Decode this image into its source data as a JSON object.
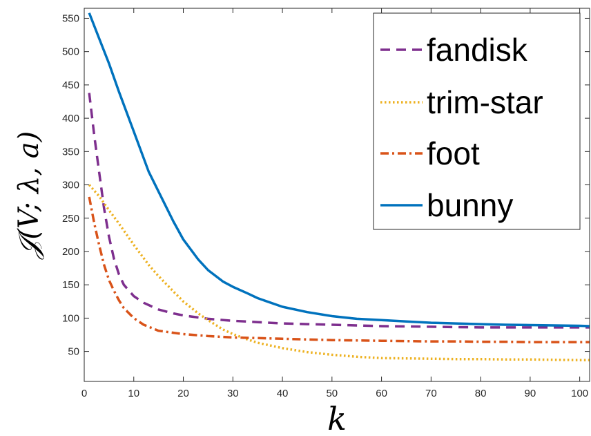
{
  "chart_data": {
    "type": "line",
    "xlabel": "k",
    "ylabel": "𝒥(V; λ, a)",
    "xlim": [
      0,
      102
    ],
    "ylim": [
      5,
      565
    ],
    "xticks": [
      "0",
      "10",
      "20",
      "30",
      "40",
      "50",
      "60",
      "70",
      "80",
      "90",
      "100"
    ],
    "yticks": [
      "50",
      "100",
      "150",
      "200",
      "250",
      "300",
      "350",
      "400",
      "450",
      "500",
      "550"
    ],
    "grid": false,
    "legend_position": "top-right",
    "series": [
      {
        "name": "fandisk",
        "color": "#7E2F8E",
        "style": "dashed",
        "x": [
          1,
          2,
          3,
          4,
          5,
          6,
          7,
          8,
          10,
          12,
          15,
          18,
          20,
          25,
          30,
          35,
          40,
          45,
          50,
          55,
          60,
          65,
          70,
          75,
          80,
          85,
          90,
          95,
          100,
          102
        ],
        "y": [
          438,
          375,
          320,
          265,
          222,
          189,
          166,
          150,
          133,
          123,
          113,
          107,
          104,
          99,
          96,
          94,
          92,
          91,
          90,
          89,
          88,
          87.5,
          87,
          86.5,
          86,
          86,
          86,
          86,
          86,
          86
        ]
      },
      {
        "name": "trim-star",
        "color": "#EDB120",
        "style": "dotted",
        "x": [
          1,
          3,
          5,
          7,
          10,
          13,
          15,
          18,
          20,
          23,
          25,
          28,
          30,
          33,
          35,
          40,
          45,
          50,
          55,
          60,
          65,
          70,
          75,
          80,
          85,
          90,
          95,
          100,
          102
        ],
        "y": [
          300,
          283,
          262,
          242,
          210,
          180,
          163,
          140,
          125,
          107,
          97,
          83,
          76,
          68,
          63,
          55,
          49,
          45,
          42,
          40,
          39.5,
          39,
          38.5,
          38.5,
          38,
          38,
          37.5,
          37,
          37
        ]
      },
      {
        "name": "foot",
        "color": "#D95319",
        "style": "dashdot",
        "x": [
          1,
          2,
          3,
          4,
          5,
          6,
          7,
          8,
          10,
          12,
          15,
          18,
          20,
          25,
          30,
          35,
          40,
          45,
          50,
          55,
          60,
          65,
          70,
          75,
          80,
          85,
          90,
          95,
          100,
          102
        ],
        "y": [
          282,
          243,
          210,
          180,
          157,
          141,
          127,
          115,
          100,
          90,
          81,
          78,
          76,
          73,
          71,
          70,
          69,
          68,
          67,
          66.5,
          66,
          65.5,
          65,
          65,
          64.5,
          64.5,
          64,
          64,
          64,
          64
        ]
      },
      {
        "name": "bunny",
        "color": "#0072BD",
        "style": "solid",
        "x": [
          1,
          3,
          5,
          7,
          10,
          13,
          15,
          18,
          20,
          23,
          25,
          28,
          30,
          33,
          35,
          40,
          45,
          50,
          55,
          60,
          65,
          70,
          75,
          80,
          85,
          90,
          95,
          100,
          102
        ],
        "y": [
          558,
          520,
          482,
          440,
          380,
          320,
          290,
          245,
          218,
          188,
          172,
          155,
          147,
          137,
          130,
          117,
          109,
          103,
          99,
          97,
          95,
          93,
          92,
          91,
          90,
          89.5,
          89,
          88.5,
          88
        ]
      }
    ]
  }
}
